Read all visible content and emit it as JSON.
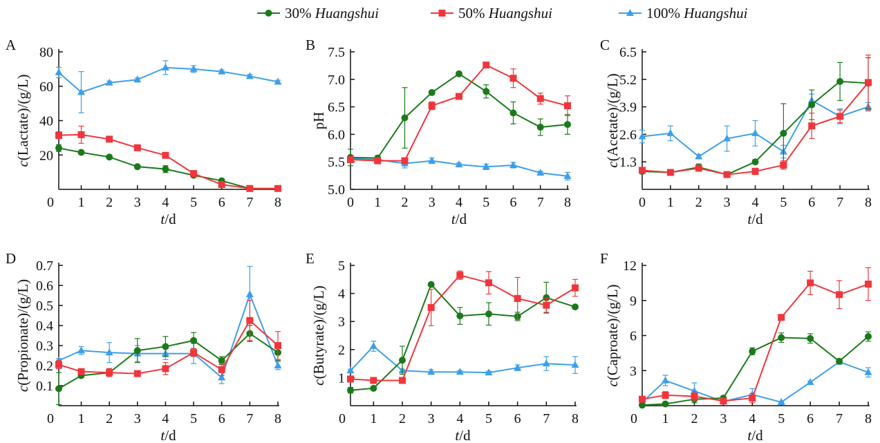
{
  "legend": {
    "placement": "top-center",
    "items": [
      {
        "label": "30% ",
        "italic": "Huangshui",
        "color": "#1a7a1a",
        "marker": "circle"
      },
      {
        "label": "50% ",
        "italic": "Huangshui",
        "color": "#f0363c",
        "marker": "square"
      },
      {
        "label": "100% ",
        "italic": "Huangshui",
        "color": "#3d9fe8",
        "marker": "triangle"
      }
    ]
  },
  "chart_data": [
    {
      "panel": "A",
      "type": "line",
      "ylabel_italic": "c",
      "ylabel_rest": "(Lactate)/(g/L)",
      "xlabel_italic": "t",
      "xlabel_rest": "/d",
      "x": [
        0.2,
        1,
        2,
        3,
        4,
        5,
        6,
        7,
        8
      ],
      "xticks": [
        "0",
        "1",
        "2",
        "3",
        "4",
        "5",
        "6",
        "7",
        "8"
      ],
      "ylim": [
        0,
        80
      ],
      "yticks": [
        20,
        40,
        60,
        80
      ],
      "yticklabels": [
        "20",
        "40",
        "60",
        "80"
      ],
      "series": [
        {
          "name": "30% Huangshui",
          "values": [
            24,
            21.5,
            18.8,
            13.2,
            11.8,
            8.2,
            5,
            0.5,
            0.5
          ],
          "err": [
            2,
            1,
            1,
            1,
            2,
            1,
            1,
            0.5,
            0.5
          ]
        },
        {
          "name": "50% Huangshui",
          "values": [
            31.5,
            31.8,
            29.2,
            24.2,
            19.8,
            9.2,
            2.8,
            0.5,
            0.5
          ],
          "err": [
            2,
            5,
            1,
            1,
            1.5,
            1,
            1,
            0.5,
            0.5
          ]
        },
        {
          "name": "100% Huangshui",
          "values": [
            68,
            56.5,
            62,
            63.8,
            70.8,
            70,
            68.5,
            65.8,
            62.5
          ],
          "err": [
            3,
            12,
            1,
            1,
            4,
            2,
            1,
            1,
            1
          ]
        }
      ]
    },
    {
      "panel": "B",
      "type": "line",
      "ylabel_italic": "",
      "ylabel_rest": "pH",
      "xlabel_italic": "t",
      "xlabel_rest": "/d",
      "x": [
        0,
        1,
        2,
        3,
        4,
        5,
        6,
        7,
        8
      ],
      "xticks": [
        "0",
        "1",
        "2",
        "3",
        "4",
        "5",
        "6",
        "7",
        "8"
      ],
      "ylim": [
        5.0,
        7.5
      ],
      "yticks": [
        5.0,
        5.5,
        6.0,
        6.5,
        7.0,
        7.5
      ],
      "yticklabels": [
        "5.0",
        "5.5",
        "6.0",
        "6.5",
        "7.0",
        "7.5"
      ],
      "series": [
        {
          "name": "30% Huangshui",
          "values": [
            5.58,
            5.57,
            6.3,
            6.76,
            7.1,
            6.78,
            6.39,
            6.13,
            6.18
          ],
          "err": [
            0.15,
            0.03,
            0.55,
            0.04,
            0.02,
            0.12,
            0.2,
            0.15,
            0.18
          ]
        },
        {
          "name": "50% Huangshui",
          "values": [
            5.54,
            5.52,
            5.52,
            6.52,
            6.69,
            7.26,
            7.02,
            6.65,
            6.52
          ],
          "err": [
            0.05,
            0.03,
            0.05,
            0.07,
            0.03,
            0.03,
            0.17,
            0.1,
            0.18
          ]
        },
        {
          "name": "100% Huangshui",
          "values": [
            5.56,
            5.54,
            5.47,
            5.52,
            5.45,
            5.41,
            5.44,
            5.3,
            5.24
          ],
          "err": [
            0.05,
            0.03,
            0.08,
            0.05,
            0.03,
            0.05,
            0.05,
            0.03,
            0.07
          ]
        }
      ]
    },
    {
      "panel": "C",
      "type": "line",
      "ylabel_italic": "c",
      "ylabel_rest": "(Acetate)/(g/L)",
      "xlabel_italic": "t",
      "xlabel_rest": "/d",
      "x": [
        0,
        1,
        2,
        3,
        4,
        5,
        6,
        7,
        8
      ],
      "xticks": [
        "0",
        "1",
        "2",
        "3",
        "4",
        "5",
        "6",
        "7",
        "8"
      ],
      "ylim": [
        0,
        6.5
      ],
      "yticks": [
        1.3,
        2.6,
        3.9,
        5.2,
        6.5
      ],
      "yticklabels": [
        "1.3",
        "2.6",
        "3.9",
        "5.2",
        "6.5"
      ],
      "series": [
        {
          "name": "30% Huangshui",
          "values": [
            0.85,
            0.8,
            1.05,
            0.7,
            1.3,
            2.65,
            4.0,
            5.1,
            5.02
          ],
          "err": [
            0.1,
            0.05,
            0.15,
            0.1,
            0.1,
            1.4,
            0.7,
            0.9,
            1.2
          ]
        },
        {
          "name": "50% Huangshui",
          "values": [
            0.9,
            0.8,
            1.0,
            0.7,
            0.85,
            1.15,
            3.0,
            3.45,
            5.05
          ],
          "err": [
            0.1,
            0.05,
            0.1,
            0.1,
            0.15,
            0.2,
            0.6,
            0.3,
            1.3
          ]
        },
        {
          "name": "100% Huangshui",
          "values": [
            2.5,
            2.65,
            1.55,
            2.4,
            2.65,
            1.78,
            4.2,
            3.45,
            3.9
          ],
          "err": [
            0.3,
            0.35,
            0.1,
            0.6,
            0.6,
            0.3,
            0.3,
            0.35,
            0.2
          ]
        }
      ]
    },
    {
      "panel": "D",
      "type": "line",
      "ylabel_italic": "c",
      "ylabel_rest": "(Propionate)/(g/L)",
      "xlabel_italic": "t",
      "xlabel_rest": "/d",
      "x": [
        0.2,
        1,
        2,
        3,
        4,
        5,
        6,
        7,
        8
      ],
      "xticks": [
        "0",
        "1",
        "2",
        "3",
        "4",
        "5",
        "6",
        "7",
        "8"
      ],
      "ylim": [
        0,
        0.7
      ],
      "yticks": [
        0.1,
        0.2,
        0.3,
        0.4,
        0.5,
        0.6,
        0.7
      ],
      "yticklabels": [
        "0.1",
        "0.2",
        "0.3",
        "0.4",
        "0.5",
        "0.6",
        "0.7"
      ],
      "series": [
        {
          "name": "30% Huangshui",
          "values": [
            0.085,
            0.15,
            0.165,
            0.275,
            0.295,
            0.325,
            0.225,
            0.36,
            0.265
          ],
          "err": [
            0.08,
            0.01,
            0.02,
            0.06,
            0.05,
            0.04,
            0.02,
            0.04,
            0.04
          ]
        },
        {
          "name": "50% Huangshui",
          "values": [
            0.205,
            0.17,
            0.165,
            0.16,
            0.185,
            0.265,
            0.18,
            0.425,
            0.3
          ],
          "err": [
            0.02,
            0.01,
            0.02,
            0.01,
            0.03,
            0.02,
            0.03,
            0.1,
            0.07
          ]
        },
        {
          "name": "100% Huangshui",
          "values": [
            0.225,
            0.275,
            0.265,
            0.26,
            0.26,
            0.26,
            0.14,
            0.555,
            0.2
          ],
          "err": [
            0.01,
            0.02,
            0.05,
            0.04,
            0.03,
            0.05,
            0.03,
            0.14,
            0.02
          ]
        }
      ]
    },
    {
      "panel": "E",
      "type": "line",
      "ylabel_italic": "c",
      "ylabel_rest": "(Butyrate)/(g/L)",
      "xlabel_italic": "t",
      "xlabel_rest": "/d",
      "x": [
        0.2,
        1,
        2,
        3,
        4,
        5,
        6,
        7,
        8
      ],
      "xticks": [
        "0",
        "1",
        "2",
        "3",
        "4",
        "5",
        "6",
        "7",
        "8"
      ],
      "ylim": [
        0,
        5
      ],
      "yticks": [
        1,
        2,
        3,
        4,
        5
      ],
      "yticklabels": [
        "1",
        "2",
        "3",
        "4",
        "5"
      ],
      "series": [
        {
          "name": "30% Huangshui",
          "values": [
            0.55,
            0.62,
            1.62,
            4.32,
            3.2,
            3.27,
            3.18,
            3.85,
            3.52
          ],
          "err": [
            0.1,
            0.05,
            0.5,
            0.05,
            0.3,
            0.4,
            0.15,
            0.55,
            0.05
          ]
        },
        {
          "name": "50% Huangshui",
          "values": [
            0.95,
            0.9,
            0.9,
            3.5,
            4.65,
            4.38,
            3.82,
            3.58,
            4.2
          ],
          "err": [
            0.05,
            0.05,
            0.05,
            0.65,
            0.15,
            0.4,
            0.75,
            0.25,
            0.3
          ]
        },
        {
          "name": "100% Huangshui",
          "values": [
            1.25,
            2.12,
            1.25,
            1.2,
            1.2,
            1.18,
            1.35,
            1.5,
            1.45
          ],
          "err": [
            0.05,
            0.18,
            0.05,
            0.08,
            0.05,
            0.05,
            0.1,
            0.25,
            0.3
          ]
        }
      ]
    },
    {
      "panel": "F",
      "type": "line",
      "ylabel_italic": "c",
      "ylabel_rest": "(Caproate)/(g/L)",
      "xlabel_italic": "t",
      "xlabel_rest": "/d",
      "x": [
        0.2,
        1,
        2,
        3,
        4,
        5,
        6,
        7,
        8
      ],
      "xticks": [
        "0",
        "1",
        "2",
        "3",
        "4",
        "5",
        "6",
        "7",
        "8"
      ],
      "ylim": [
        0,
        12
      ],
      "yticks": [
        3,
        6,
        9,
        12
      ],
      "yticklabels": [
        "3",
        "6",
        "9",
        "12"
      ],
      "series": [
        {
          "name": "30% Huangshui",
          "values": [
            0.05,
            0.15,
            0.55,
            0.65,
            4.65,
            5.82,
            5.75,
            3.8,
            5.92
          ],
          "err": [
            0.05,
            0.05,
            0.3,
            0.15,
            0.3,
            0.4,
            0.4,
            0.2,
            0.4
          ]
        },
        {
          "name": "50% Huangshui",
          "values": [
            0.55,
            0.9,
            0.8,
            0.4,
            0.65,
            7.55,
            10.5,
            9.5,
            10.4
          ],
          "err": [
            0.1,
            0.3,
            0.4,
            0.1,
            0.4,
            0.15,
            1.0,
            1.2,
            1.4
          ]
        },
        {
          "name": "100% Huangshui",
          "values": [
            0.3,
            2.15,
            1.25,
            0.35,
            0.95,
            0.3,
            2.0,
            3.75,
            2.85
          ],
          "err": [
            0.05,
            0.45,
            0.7,
            0.05,
            0.5,
            0.05,
            0.1,
            0.1,
            0.4
          ]
        }
      ]
    }
  ]
}
